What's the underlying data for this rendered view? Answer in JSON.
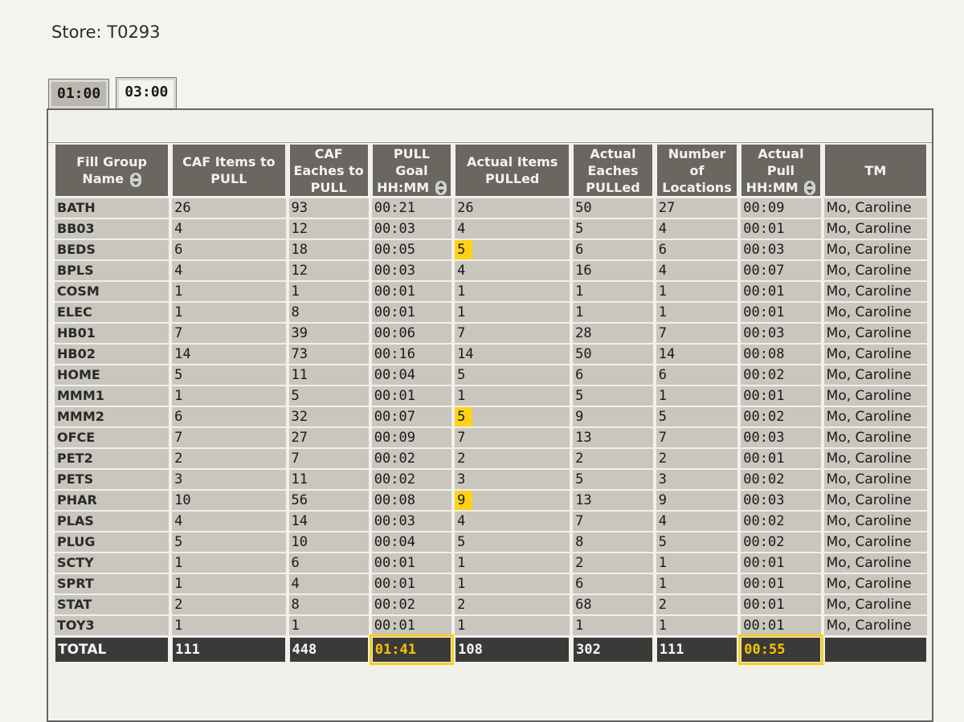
{
  "store_label": "Store: T0293",
  "tabs": [
    "01:00",
    "03:00"
  ],
  "headers": [
    "Fill Group Name",
    "CAF Items to PULL",
    "CAF Eaches to PULL",
    "PULL Goal HH:MM",
    "Actual Items PULLed",
    "Actual Eaches PULLed",
    "Number of Locations",
    "Actual Pull HH:MM",
    "TM"
  ],
  "rows": [
    [
      "BATH",
      "26",
      "93",
      "00:21",
      "26",
      "50",
      "27",
      "00:09",
      "Mo, Caroline"
    ],
    [
      "BB03",
      "4",
      "12",
      "00:03",
      "4",
      "5",
      "4",
      "00:01",
      "Mo, Caroline"
    ],
    [
      "BEDS",
      "6",
      "18",
      "00:05",
      "5",
      "6",
      "6",
      "00:03",
      "Mo, Caroline"
    ],
    [
      "BPLS",
      "4",
      "12",
      "00:03",
      "4",
      "16",
      "4",
      "00:07",
      "Mo, Caroline"
    ],
    [
      "COSM",
      "1",
      "1",
      "00:01",
      "1",
      "1",
      "1",
      "00:01",
      "Mo, Caroline"
    ],
    [
      "ELEC",
      "1",
      "8",
      "00:01",
      "1",
      "1",
      "1",
      "00:01",
      "Mo, Caroline"
    ],
    [
      "HB01",
      "7",
      "39",
      "00:06",
      "7",
      "28",
      "7",
      "00:03",
      "Mo, Caroline"
    ],
    [
      "HB02",
      "14",
      "73",
      "00:16",
      "14",
      "50",
      "14",
      "00:08",
      "Mo, Caroline"
    ],
    [
      "HOME",
      "5",
      "11",
      "00:04",
      "5",
      "6",
      "6",
      "00:02",
      "Mo, Caroline"
    ],
    [
      "MMM1",
      "1",
      "5",
      "00:01",
      "1",
      "5",
      "1",
      "00:01",
      "Mo, Caroline"
    ],
    [
      "MMM2",
      "6",
      "32",
      "00:07",
      "5",
      "9",
      "5",
      "00:02",
      "Mo, Caroline"
    ],
    [
      "OFCE",
      "7",
      "27",
      "00:09",
      "7",
      "13",
      "7",
      "00:03",
      "Mo, Caroline"
    ],
    [
      "PET2",
      "2",
      "7",
      "00:02",
      "2",
      "2",
      "2",
      "00:01",
      "Mo, Caroline"
    ],
    [
      "PETS",
      "3",
      "11",
      "00:02",
      "3",
      "5",
      "3",
      "00:02",
      "Mo, Caroline"
    ],
    [
      "PHAR",
      "10",
      "56",
      "00:08",
      "9",
      "13",
      "9",
      "00:03",
      "Mo, Caroline"
    ],
    [
      "PLAS",
      "4",
      "14",
      "00:03",
      "4",
      "7",
      "4",
      "00:02",
      "Mo, Caroline"
    ],
    [
      "PLUG",
      "5",
      "10",
      "00:04",
      "5",
      "8",
      "5",
      "00:02",
      "Mo, Caroline"
    ],
    [
      "SCTY",
      "1",
      "6",
      "00:01",
      "1",
      "2",
      "1",
      "00:01",
      "Mo, Caroline"
    ],
    [
      "SPRT",
      "1",
      "4",
      "00:01",
      "1",
      "6",
      "1",
      "00:01",
      "Mo, Caroline"
    ],
    [
      "STAT",
      "2",
      "8",
      "00:02",
      "2",
      "68",
      "2",
      "00:01",
      "Mo, Caroline"
    ],
    [
      "TOY3",
      "1",
      "1",
      "00:01",
      "1",
      "1",
      "1",
      "00:01",
      "Mo, Caroline"
    ]
  ],
  "total": [
    "TOTAL",
    "111",
    "448",
    "01:41",
    "108",
    "302",
    "111",
    "00:55",
    ""
  ]
}
